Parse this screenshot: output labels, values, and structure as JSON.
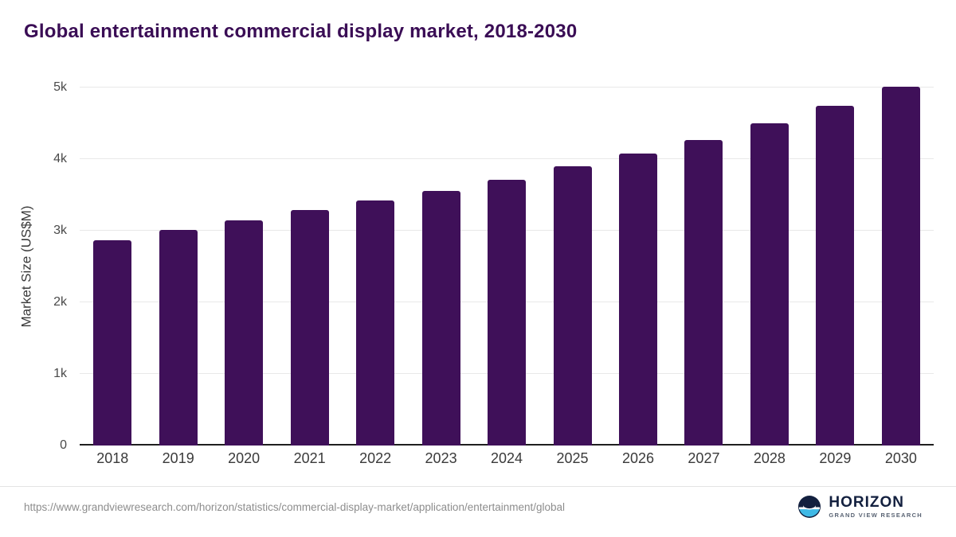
{
  "page": {
    "title": "Global entertainment commercial display market, 2018-2030"
  },
  "colors": {
    "bar": "#3F1059",
    "title": "#3A0D55",
    "gridline": "#E8E8E8",
    "axis": "#1F1F1F",
    "logo_circle_dark": "#13203f",
    "logo_circle_light": "#3fb9e6"
  },
  "chart_data": {
    "type": "bar",
    "title": "Global entertainment commercial display market, 2018-2030",
    "categories": [
      "2018",
      "2019",
      "2020",
      "2021",
      "2022",
      "2023",
      "2024",
      "2025",
      "2026",
      "2027",
      "2028",
      "2029",
      "2030"
    ],
    "values": [
      2870,
      3010,
      3150,
      3290,
      3420,
      3560,
      3710,
      3900,
      4080,
      4270,
      4500,
      4740,
      5010
    ],
    "xlabel": "",
    "ylabel": "Market Size (US$M)",
    "ylim": [
      0,
      5000
    ],
    "yticks": [
      {
        "value": 0,
        "label": "0"
      },
      {
        "value": 1000,
        "label": "1k"
      },
      {
        "value": 2000,
        "label": "2k"
      },
      {
        "value": 3000,
        "label": "3k"
      },
      {
        "value": 4000,
        "label": "4k"
      },
      {
        "value": 5000,
        "label": "5k"
      }
    ],
    "grid": true,
    "legend": false,
    "bar_color": "#3F1059"
  },
  "footer": {
    "source_url": "https://www.grandviewresearch.com/horizon/statistics/commercial-display-market/application/entertainment/global"
  },
  "logo": {
    "name": "HORIZON",
    "subtitle": "GRAND VIEW RESEARCH"
  }
}
